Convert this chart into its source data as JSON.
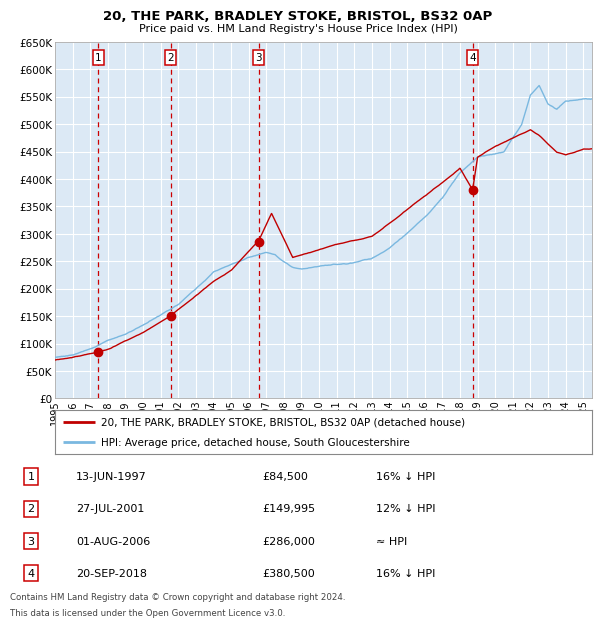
{
  "title1": "20, THE PARK, BRADLEY STOKE, BRISTOL, BS32 0AP",
  "title2": "Price paid vs. HM Land Registry's House Price Index (HPI)",
  "plot_bg": "#dce9f5",
  "grid_color": "#ffffff",
  "hpi_color": "#7ab8e0",
  "price_color": "#c00000",
  "vline_color": "#cc0000",
  "ylim": [
    0,
    650000
  ],
  "yticks": [
    0,
    50000,
    100000,
    150000,
    200000,
    250000,
    300000,
    350000,
    400000,
    450000,
    500000,
    550000,
    600000,
    650000
  ],
  "sales": [
    {
      "label": "1",
      "date_num": 1997.45,
      "price": 84500
    },
    {
      "label": "2",
      "date_num": 2001.58,
      "price": 149995
    },
    {
      "label": "3",
      "date_num": 2006.58,
      "price": 286000
    },
    {
      "label": "4",
      "date_num": 2018.72,
      "price": 380500
    }
  ],
  "legend_line1": "20, THE PARK, BRADLEY STOKE, BRISTOL, BS32 0AP (detached house)",
  "legend_line2": "HPI: Average price, detached house, South Gloucestershire",
  "table_rows": [
    {
      "num": "1",
      "date": "13-JUN-1997",
      "price": "£84,500",
      "note": "16% ↓ HPI"
    },
    {
      "num": "2",
      "date": "27-JUL-2001",
      "price": "£149,995",
      "note": "12% ↓ HPI"
    },
    {
      "num": "3",
      "date": "01-AUG-2006",
      "price": "£286,000",
      "note": "≈ HPI"
    },
    {
      "num": "4",
      "date": "20-SEP-2018",
      "price": "£380,500",
      "note": "16% ↓ HPI"
    }
  ],
  "footnote1": "Contains HM Land Registry data © Crown copyright and database right 2024.",
  "footnote2": "This data is licensed under the Open Government Licence v3.0.",
  "xmin": 1995.0,
  "xmax": 2025.5,
  "hpi_anchors_x": [
    1995,
    1996,
    1997,
    1998,
    1999,
    2000,
    2001,
    2002,
    2003,
    2004,
    2005,
    2006,
    2007,
    2007.5,
    2008,
    2008.5,
    2009,
    2010,
    2011,
    2012,
    2013,
    2014,
    2015,
    2016,
    2017,
    2018,
    2019,
    2020,
    2020.5,
    2021,
    2021.5,
    2022,
    2022.5,
    2023,
    2023.5,
    2024,
    2025
  ],
  "hpi_anchors_y": [
    75000,
    80000,
    90000,
    107000,
    118000,
    135000,
    155000,
    175000,
    205000,
    235000,
    248000,
    262000,
    272000,
    268000,
    255000,
    245000,
    242000,
    245000,
    248000,
    252000,
    260000,
    278000,
    305000,
    335000,
    370000,
    415000,
    445000,
    450000,
    455000,
    480000,
    505000,
    560000,
    578000,
    545000,
    535000,
    550000,
    555000
  ],
  "pp_anchors_x": [
    1995,
    1997,
    1997.45,
    1998,
    2000,
    2001.58,
    2003,
    2004,
    2005,
    2006.58,
    2007.3,
    2008.5,
    2009.5,
    2011,
    2013,
    2015,
    2016,
    2017,
    2018,
    2018.72,
    2019,
    2020,
    2021,
    2022,
    2022.5,
    2023,
    2023.5,
    2024,
    2025
  ],
  "pp_anchors_y": [
    70000,
    82000,
    84500,
    90000,
    120000,
    149995,
    185000,
    210000,
    230000,
    286000,
    335000,
    255000,
    265000,
    280000,
    295000,
    345000,
    370000,
    395000,
    420000,
    380500,
    440000,
    460000,
    475000,
    490000,
    480000,
    465000,
    450000,
    445000,
    455000
  ]
}
